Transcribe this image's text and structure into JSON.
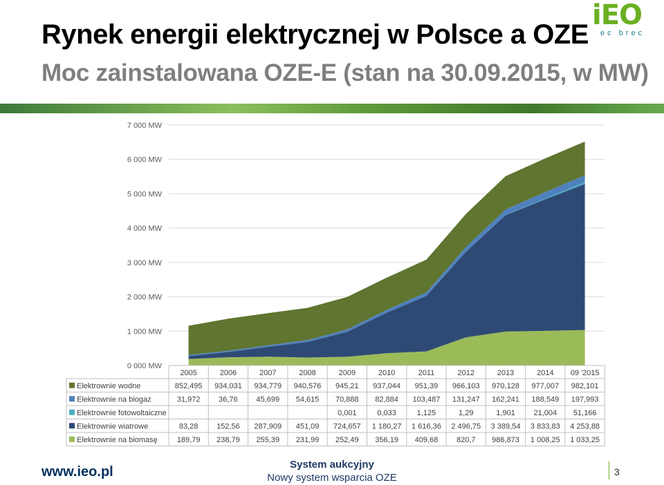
{
  "header": {
    "title": "Rynek energii elektrycznej w Polsce a OZE",
    "subtitle": "Moc zainstalowana OZE-E (stan na 30.09.2015, w MW)"
  },
  "logo": {
    "main": "iEO",
    "sub": "ec brec"
  },
  "footer": {
    "url": "www.ieo.pl",
    "line1": "System aukcyjny",
    "line2": "Nowy system wsparcia OZE",
    "page": "3"
  },
  "colors": {
    "wodne": "#5f7530",
    "biogaz": "#4f81bd",
    "fotowoltaiczne": "#4bacc6",
    "wiatrowe": "#2e4a74",
    "biomase": "#9bbb59"
  },
  "chart_data": {
    "type": "area",
    "stacked": true,
    "categories": [
      "2005",
      "2006",
      "2007",
      "2008",
      "2009",
      "2010",
      "2011",
      "2012",
      "2013",
      "2014",
      "09 '2015"
    ],
    "yticks": [
      "0 000 MW",
      "1 000 MW",
      "2 000 MW",
      "3 000 MW",
      "4 000 MW",
      "5 000 MW",
      "6 000 MW",
      "7 000 MW"
    ],
    "ylim": [
      0,
      7000
    ],
    "grid": true,
    "legend": "table-below",
    "series": [
      {
        "name": "Elektrownie wodne",
        "key": "wodne",
        "labels": [
          "852,495",
          "934,031",
          "934,779",
          "940,576",
          "945,21",
          "937,044",
          "951,39",
          "966,103",
          "970,128",
          "977,007",
          "982,101"
        ],
        "values": [
          852.495,
          934.031,
          934.779,
          940.576,
          945.21,
          937.044,
          951.39,
          966.103,
          970.128,
          977.007,
          982.101
        ]
      },
      {
        "name": "Elektrownie na biogaz",
        "key": "biogaz",
        "labels": [
          "31,972",
          "36,76",
          "45,699",
          "54,615",
          "70,888",
          "82,884",
          "103,487",
          "131,247",
          "162,241",
          "188,549",
          "197,993"
        ],
        "values": [
          31.972,
          36.76,
          45.699,
          54.615,
          70.888,
          82.884,
          103.487,
          131.247,
          162.241,
          188.549,
          197.993
        ]
      },
      {
        "name": "Elektrownie fotowoltaiczne",
        "key": "fotowoltaiczne",
        "labels": [
          "",
          "",
          "",
          "",
          "0,001",
          "0,033",
          "1,125",
          "1,29",
          "1,901",
          "21,004",
          "51,166"
        ],
        "values": [
          0,
          0,
          0,
          0,
          0.001,
          0.033,
          1.125,
          1.29,
          1.901,
          21.004,
          51.166
        ]
      },
      {
        "name": "Elektrownie wiatrowe",
        "key": "wiatrowe",
        "labels": [
          "83,28",
          "152,56",
          "287,909",
          "451,09",
          "724,657",
          "1 180,27",
          "1 616,36",
          "2 496,75",
          "3 389,54",
          "3 833,83",
          "4 253,88"
        ],
        "values": [
          83.28,
          152.56,
          287.909,
          451.09,
          724.657,
          1180.27,
          1616.36,
          2496.75,
          3389.54,
          3833.83,
          4253.88
        ]
      },
      {
        "name": "Elektrownie na biomasę",
        "key": "biomase",
        "labels": [
          "189,79",
          "238,79",
          "255,39",
          "231,99",
          "252,49",
          "356,19",
          "409,68",
          "820,7",
          "986,873",
          "1 008,25",
          "1 033,25"
        ],
        "values": [
          189.79,
          238.79,
          255.39,
          231.99,
          252.49,
          356.19,
          409.68,
          820.7,
          986.873,
          1008.25,
          1033.25
        ]
      }
    ]
  }
}
